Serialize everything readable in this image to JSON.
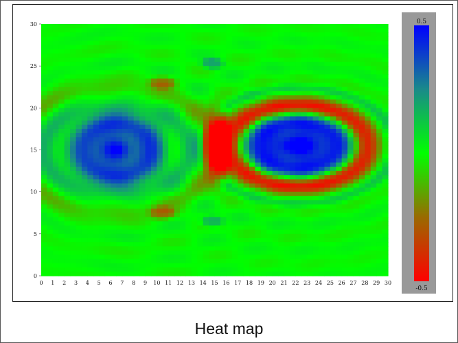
{
  "caption": "Heat map",
  "chart_data": {
    "type": "heatmap",
    "title": "",
    "xlabel": "",
    "ylabel": "",
    "xlim": [
      0,
      30
    ],
    "ylim": [
      0,
      30
    ],
    "x_ticks": [
      "0",
      "1",
      "2",
      "3",
      "4",
      "5",
      "6",
      "7",
      "8",
      "9",
      "10",
      "11",
      "12",
      "13",
      "14",
      "15",
      "16",
      "17",
      "18",
      "19",
      "20",
      "21",
      "22",
      "23",
      "24",
      "25",
      "26",
      "27",
      "28",
      "29",
      "30"
    ],
    "y_ticks": [
      "0",
      "5",
      "10",
      "15",
      "20",
      "25",
      "30"
    ],
    "colorbar": {
      "max_label": "0.5",
      "min_label": "-0.5",
      "range": [
        -0.5,
        0.5
      ],
      "colors": [
        "#ff0000",
        "#9a6a00",
        "#00ff00",
        "#1a8a8a",
        "#0000ff"
      ]
    },
    "grid": false,
    "legend": "colorbar right",
    "features": [
      {
        "kind": "blob",
        "x": 6.5,
        "y": 15,
        "rx": 4.2,
        "ry": 4.5,
        "value": 0.42
      },
      {
        "kind": "blob",
        "x": 22.2,
        "y": 15.5,
        "rx": 5.6,
        "ry": 4.2,
        "value": 0.5
      },
      {
        "kind": "ring",
        "x": 22.2,
        "y": 15.5,
        "r": 1.45,
        "width": 0.35,
        "value": -0.48
      },
      {
        "kind": "ring",
        "x": 22.2,
        "y": 15.5,
        "r": 2.1,
        "width": 0.15,
        "value": 0.1
      },
      {
        "kind": "blob",
        "x": 15.2,
        "y": 15.5,
        "rx": 1.3,
        "ry": 4.5,
        "value": -0.5
      },
      {
        "kind": "blob",
        "x": 14.8,
        "y": 25.3,
        "rx": 1.0,
        "ry": 0.7,
        "value": 0.2
      },
      {
        "kind": "blob",
        "x": 14.8,
        "y": 6.5,
        "rx": 1.0,
        "ry": 0.7,
        "value": 0.2
      },
      {
        "kind": "blob",
        "x": 10.5,
        "y": 23.0,
        "rx": 1.2,
        "ry": 0.8,
        "value": -0.2
      },
      {
        "kind": "blob",
        "x": 10.5,
        "y": 7.5,
        "rx": 1.2,
        "ry": 0.8,
        "value": -0.2
      },
      {
        "kind": "ring",
        "x": 6.5,
        "y": 15,
        "r": 1.55,
        "width": 0.28,
        "value": 0.14
      },
      {
        "kind": "ring",
        "x": 6.5,
        "y": 15,
        "r": 2.2,
        "width": 0.28,
        "value": -0.1
      }
    ]
  }
}
